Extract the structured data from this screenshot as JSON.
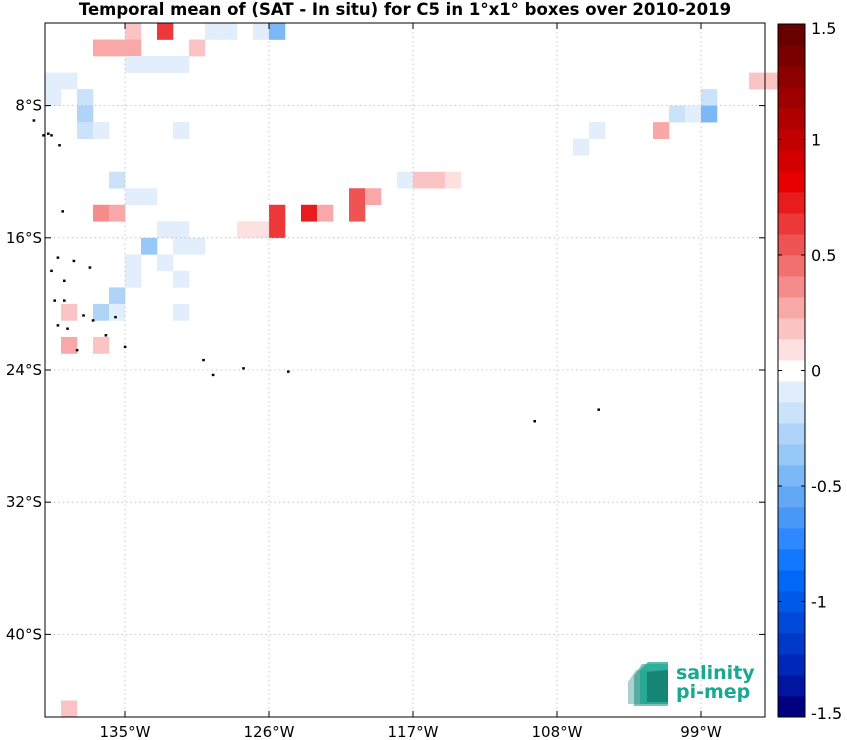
{
  "title": "Temporal mean of (SAT - In situ) for C5 in 1°x1° boxes over 2010-2019",
  "logo": {
    "line1": "salinity",
    "line2": "pi-mep",
    "color": "#1aa892"
  },
  "colorbar": {
    "ticks": [
      {
        "value": 1.5,
        "label": "1.5"
      },
      {
        "value": 1,
        "label": "1"
      },
      {
        "value": 0.5,
        "label": "0.5"
      },
      {
        "value": 0,
        "label": "0"
      },
      {
        "value": -0.5,
        "label": "-0.5"
      },
      {
        "value": -1,
        "label": "-1"
      },
      {
        "value": -1.5,
        "label": "-1.5"
      }
    ],
    "colors_bottom_to_top": [
      "#000080",
      "#0015a0",
      "#0028b8",
      "#0038c8",
      "#0048d8",
      "#0058e8",
      "#0068f8",
      "#1478ff",
      "#2e88ff",
      "#4898f5",
      "#62a8f5",
      "#7cb8f5",
      "#96c8f8",
      "#b0d4f8",
      "#cae2fa",
      "#e2eefc",
      "#ffffff",
      "#fde0e0",
      "#fbc4c4",
      "#f9a8a8",
      "#f58c8c",
      "#f27070",
      "#ee5454",
      "#ec3838",
      "#e81c1c",
      "#e60000",
      "#d40000",
      "#c20000",
      "#b00000",
      "#9e0000",
      "#8c0000",
      "#7a0000",
      "#680000"
    ]
  },
  "chart_data": {
    "type": "heatmap",
    "title": "Temporal mean of (SAT - In situ) for C5 in 1°x1° boxes over 2010-2019",
    "xlabel": "",
    "ylabel": "",
    "xlim": [
      -140,
      -95
    ],
    "ylim": [
      -45,
      -3
    ],
    "x_ticks": [
      {
        "value": -135,
        "label": "135°W"
      },
      {
        "value": -126,
        "label": "126°W"
      },
      {
        "value": -117,
        "label": "117°W"
      },
      {
        "value": -108,
        "label": "108°W"
      },
      {
        "value": -99,
        "label": "99°W"
      }
    ],
    "y_ticks": [
      {
        "value": -8,
        "label": "8°S"
      },
      {
        "value": -16,
        "label": "16°S"
      },
      {
        "value": -24,
        "label": "24°S"
      },
      {
        "value": -32,
        "label": "32°S"
      },
      {
        "value": -40,
        "label": "40°S"
      }
    ],
    "grid": true,
    "color_range": [
      -1.5,
      1.5
    ],
    "cells": [
      {
        "lon": -135,
        "lat": -4,
        "v": 0.2
      },
      {
        "lon": -133,
        "lat": -4,
        "v": 0.6
      },
      {
        "lon": -130,
        "lat": -4,
        "v": -0.1
      },
      {
        "lon": -129,
        "lat": -4,
        "v": -0.1
      },
      {
        "lon": -127,
        "lat": -4,
        "v": -0.1
      },
      {
        "lon": -126,
        "lat": -4,
        "v": -0.5
      },
      {
        "lon": -137,
        "lat": -5,
        "v": 0.3
      },
      {
        "lon": -136,
        "lat": -5,
        "v": 0.3
      },
      {
        "lon": -135,
        "lat": -5,
        "v": 0.3
      },
      {
        "lon": -131,
        "lat": -5,
        "v": 0.2
      },
      {
        "lon": -135,
        "lat": -6,
        "v": -0.1
      },
      {
        "lon": -134,
        "lat": -6,
        "v": -0.1
      },
      {
        "lon": -133,
        "lat": -6,
        "v": -0.1
      },
      {
        "lon": -132,
        "lat": -6,
        "v": -0.1
      },
      {
        "lon": -140,
        "lat": -7,
        "v": -0.1
      },
      {
        "lon": -139,
        "lat": -7,
        "v": -0.1
      },
      {
        "lon": -96,
        "lat": -7,
        "v": 0.15
      },
      {
        "lon": -95,
        "lat": -7,
        "v": 0.15
      },
      {
        "lon": -140,
        "lat": -8,
        "v": -0.1
      },
      {
        "lon": -138,
        "lat": -8,
        "v": -0.2
      },
      {
        "lon": -99,
        "lat": -8,
        "v": -0.15
      },
      {
        "lon": -138,
        "lat": -9,
        "v": -0.3
      },
      {
        "lon": -101,
        "lat": -9,
        "v": -0.2
      },
      {
        "lon": -100,
        "lat": -9,
        "v": -0.1
      },
      {
        "lon": -99,
        "lat": -9,
        "v": -0.5
      },
      {
        "lon": -138,
        "lat": -10,
        "v": -0.2
      },
      {
        "lon": -137,
        "lat": -10,
        "v": -0.1
      },
      {
        "lon": -132,
        "lat": -10,
        "v": -0.1
      },
      {
        "lon": -106,
        "lat": -10,
        "v": -0.1
      },
      {
        "lon": -102,
        "lat": -10,
        "v": 0.3
      },
      {
        "lon": -107,
        "lat": -11,
        "v": -0.1
      },
      {
        "lon": -136,
        "lat": -13,
        "v": -0.2
      },
      {
        "lon": -118,
        "lat": -13,
        "v": -0.1
      },
      {
        "lon": -117,
        "lat": -13,
        "v": 0.2
      },
      {
        "lon": -116,
        "lat": -13,
        "v": 0.2
      },
      {
        "lon": -115,
        "lat": -13,
        "v": 0.1
      },
      {
        "lon": -135,
        "lat": -14,
        "v": -0.1
      },
      {
        "lon": -134,
        "lat": -14,
        "v": -0.1
      },
      {
        "lon": -121,
        "lat": -14,
        "v": 0.5
      },
      {
        "lon": -120,
        "lat": -14,
        "v": 0.3
      },
      {
        "lon": -137,
        "lat": -15,
        "v": 0.4
      },
      {
        "lon": -136,
        "lat": -15,
        "v": 0.3
      },
      {
        "lon": -126,
        "lat": -15,
        "v": 0.6
      },
      {
        "lon": -124,
        "lat": -15,
        "v": 0.7
      },
      {
        "lon": -123,
        "lat": -15,
        "v": 0.3
      },
      {
        "lon": -121,
        "lat": -15,
        "v": 0.5
      },
      {
        "lon": -133,
        "lat": -16,
        "v": -0.1
      },
      {
        "lon": -132,
        "lat": -16,
        "v": -0.1
      },
      {
        "lon": -128,
        "lat": -16,
        "v": 0.1
      },
      {
        "lon": -127,
        "lat": -16,
        "v": 0.1
      },
      {
        "lon": -126,
        "lat": -16,
        "v": 0.6
      },
      {
        "lon": -134,
        "lat": -17,
        "v": -0.4
      },
      {
        "lon": -132,
        "lat": -17,
        "v": -0.1
      },
      {
        "lon": -131,
        "lat": -17,
        "v": -0.1
      },
      {
        "lon": -135,
        "lat": -18,
        "v": -0.1
      },
      {
        "lon": -133,
        "lat": -18,
        "v": -0.1
      },
      {
        "lon": -135,
        "lat": -19,
        "v": -0.1
      },
      {
        "lon": -132,
        "lat": -19,
        "v": -0.1
      },
      {
        "lon": -136,
        "lat": -20,
        "v": -0.3
      },
      {
        "lon": -139,
        "lat": -21,
        "v": 0.15
      },
      {
        "lon": -137,
        "lat": -21,
        "v": -0.3
      },
      {
        "lon": -136,
        "lat": -21,
        "v": -0.1
      },
      {
        "lon": -132,
        "lat": -21,
        "v": -0.1
      },
      {
        "lon": -139,
        "lat": -23,
        "v": 0.3
      },
      {
        "lon": -137,
        "lat": -23,
        "v": 0.2
      },
      {
        "lon": -139,
        "lat": -45,
        "v": 0.2
      }
    ],
    "land": [
      {
        "lon": -140.7,
        "lat": -8.9
      },
      {
        "lon": -139.8,
        "lat": -9.7
      },
      {
        "lon": -139.6,
        "lat": -9.8
      },
      {
        "lon": -140.1,
        "lat": -9.8
      },
      {
        "lon": -139.1,
        "lat": -10.4
      },
      {
        "lon": -138.9,
        "lat": -14.4
      },
      {
        "lon": -139.2,
        "lat": -17.2
      },
      {
        "lon": -138.2,
        "lat": -17.4
      },
      {
        "lon": -137.2,
        "lat": -17.8
      },
      {
        "lon": -139.6,
        "lat": -18.0
      },
      {
        "lon": -138.8,
        "lat": -18.6
      },
      {
        "lon": -139.4,
        "lat": -19.8
      },
      {
        "lon": -138.8,
        "lat": -19.8
      },
      {
        "lon": -137.6,
        "lat": -20.7
      },
      {
        "lon": -137.0,
        "lat": -21.0
      },
      {
        "lon": -135.6,
        "lat": -20.8
      },
      {
        "lon": -139.2,
        "lat": -21.3
      },
      {
        "lon": -138.6,
        "lat": -21.5
      },
      {
        "lon": -136.2,
        "lat": -21.9
      },
      {
        "lon": -138.0,
        "lat": -22.8
      },
      {
        "lon": -135.0,
        "lat": -22.6
      },
      {
        "lon": -130.1,
        "lat": -23.4
      },
      {
        "lon": -129.5,
        "lat": -24.3
      },
      {
        "lon": -127.6,
        "lat": -23.9
      },
      {
        "lon": -124.8,
        "lat": -24.1
      },
      {
        "lon": -109.4,
        "lat": -27.1
      },
      {
        "lon": -105.4,
        "lat": -26.4
      }
    ]
  }
}
